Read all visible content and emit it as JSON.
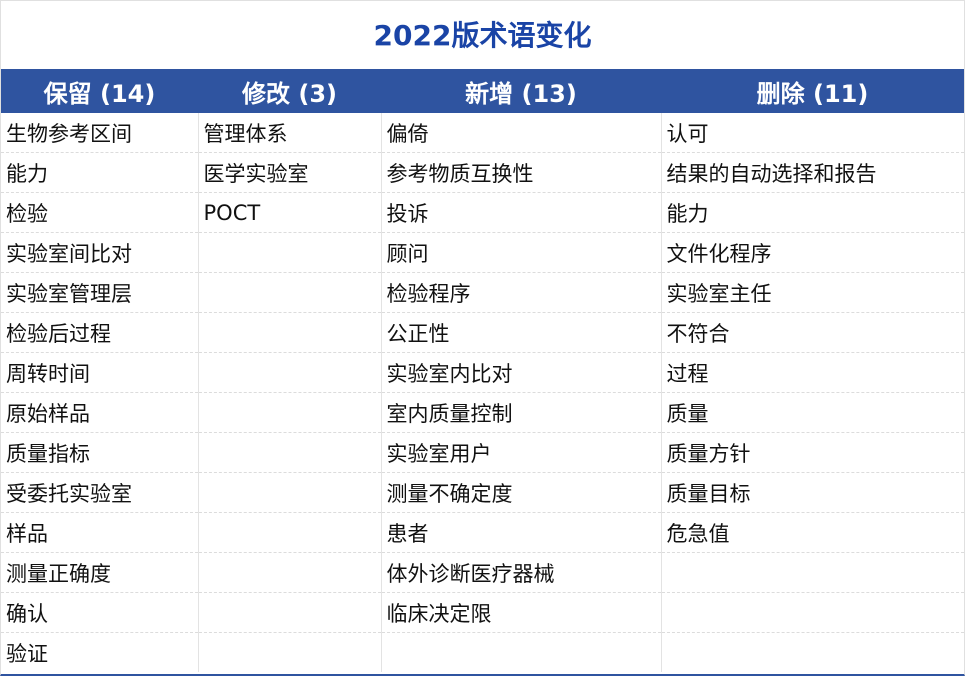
{
  "title": "2022版术语变化",
  "colors": {
    "header_bg": "#2f54a0",
    "title": "#1a44a6"
  },
  "columns": [
    {
      "header": "保留 (14)",
      "items": [
        "生物参考区间",
        "能力",
        "检验",
        "实验室间比对",
        "实验室管理层",
        "检验后过程",
        "周转时间",
        "原始样品",
        "质量指标",
        "受委托实验室",
        "样品",
        "测量正确度",
        "确认",
        "验证"
      ]
    },
    {
      "header": "修改 (3)",
      "items": [
        "管理体系",
        "医学实验室",
        "POCT"
      ]
    },
    {
      "header": "新增 (13)",
      "items": [
        "偏倚",
        "参考物质互换性",
        "投诉",
        "顾问",
        "检验程序",
        "公正性",
        "实验室内比对",
        "室内质量控制",
        "实验室用户",
        "测量不确定度",
        "患者",
        "体外诊断医疗器械",
        "临床决定限"
      ]
    },
    {
      "header": "删除 (11)",
      "items": [
        "认可",
        "结果的自动选择和报告",
        "能力",
        "文件化程序",
        "实验室主任",
        "不符合",
        "过程",
        "质量",
        "质量方针",
        "质量目标",
        "危急值"
      ]
    }
  ]
}
